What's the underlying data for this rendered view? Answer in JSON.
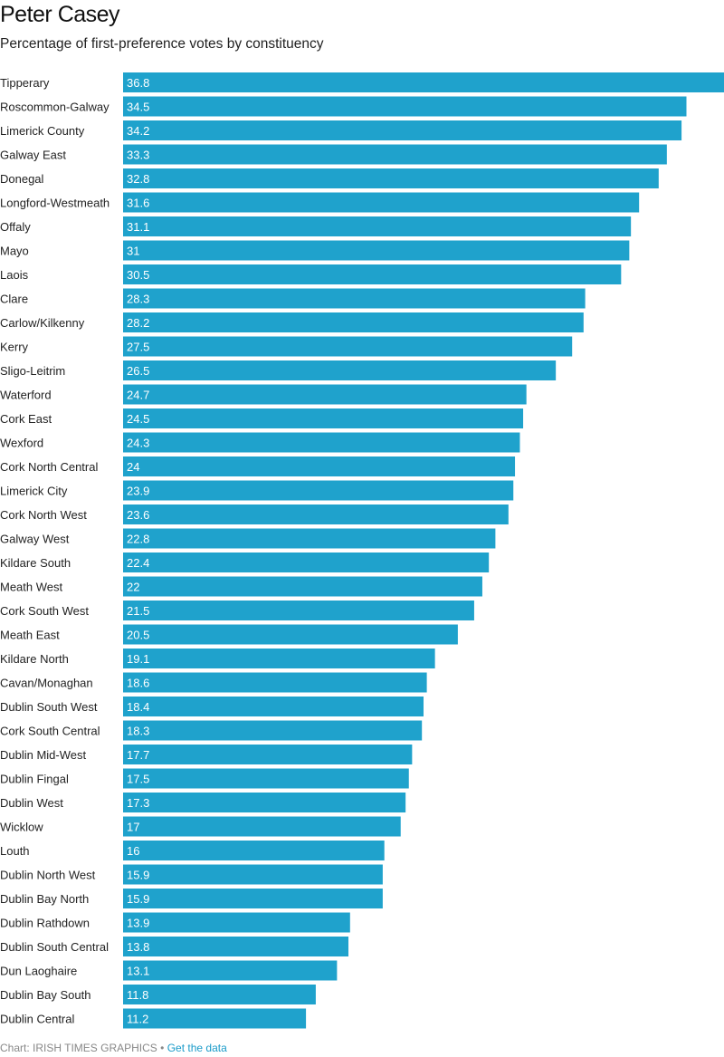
{
  "title": "Peter Casey",
  "subtitle": "Percentage of first-preference votes by constituency",
  "footer": {
    "credit": "Chart: IRISH TIMES GRAPHICS",
    "separator": "•",
    "link_label": "Get the data"
  },
  "colors": {
    "bar": "#1fa2cc",
    "bar_label": "#ffffff",
    "category_label": "#222222"
  },
  "chart_data": {
    "type": "bar",
    "orientation": "horizontal",
    "xlim": [
      0,
      36.8
    ],
    "grid": false,
    "legend": "none",
    "categories": [
      "Tipperary",
      "Roscommon-Galway",
      "Limerick County",
      "Galway East",
      "Donegal",
      "Longford-Westmeath",
      "Offaly",
      "Mayo",
      "Laois",
      "Clare",
      "Carlow/Kilkenny",
      "Kerry",
      "Sligo-Leitrim",
      "Waterford",
      "Cork East",
      "Wexford",
      "Cork North Central",
      "Limerick City",
      "Cork North West",
      "Galway West",
      "Kildare South",
      "Meath West",
      "Cork South West",
      "Meath East",
      "Kildare North",
      "Cavan/Monaghan",
      "Dublin South West",
      "Cork South Central",
      "Dublin Mid-West",
      "Dublin Fingal",
      "Dublin West",
      "Wicklow",
      "Louth",
      "Dublin North West",
      "Dublin Bay North",
      "Dublin Rathdown",
      "Dublin South Central",
      "Dun Laoghaire",
      "Dublin Bay South",
      "Dublin Central"
    ],
    "values": [
      36.8,
      34.5,
      34.2,
      33.3,
      32.8,
      31.6,
      31.1,
      31,
      30.5,
      28.3,
      28.2,
      27.5,
      26.5,
      24.7,
      24.5,
      24.3,
      24,
      23.9,
      23.6,
      22.8,
      22.4,
      22,
      21.5,
      20.5,
      19.1,
      18.6,
      18.4,
      18.3,
      17.7,
      17.5,
      17.3,
      17,
      16,
      15.9,
      15.9,
      13.9,
      13.8,
      13.1,
      11.8,
      11.2
    ]
  }
}
